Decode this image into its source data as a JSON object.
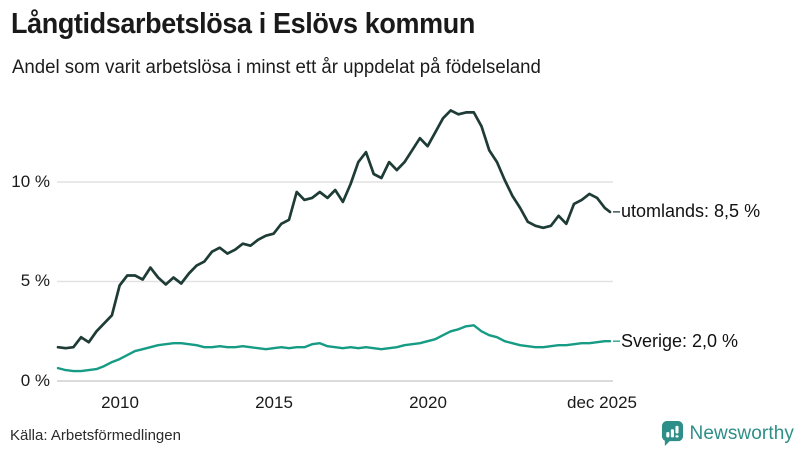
{
  "header": {
    "title": "Långtidsarbetslösa i Eslövs kommun",
    "subtitle": "Andel som varit arbetslösa i minst ett år uppdelat på födelseland"
  },
  "footer": {
    "source": "Källa: Arbetsförmedlingen",
    "brand": "Newsworthy"
  },
  "colors": {
    "utomlands_line": "#1e3b36",
    "sverige_line": "#169b84",
    "gridline": "#e2e2e2",
    "zero_line": "#cfcfcf",
    "brand_teal": "#2e8f88",
    "text": "#1a1a1a"
  },
  "chart_data": {
    "type": "line",
    "title": "Långtidsarbetslösa i Eslövs kommun",
    "subtitle": "Andel som varit arbetslösa i minst ett år uppdelat på födelseland",
    "xlabel": "",
    "ylabel": "",
    "grid": "horizontal",
    "legend_position": "end-of-line-labels",
    "xlim": [
      2008.0,
      2025.92
    ],
    "ylim": [
      0,
      13.9
    ],
    "y_ticks": [
      {
        "label": "0 %",
        "value": 0
      },
      {
        "label": "5 %",
        "value": 5
      },
      {
        "label": "10 %",
        "value": 10
      }
    ],
    "x_ticks": [
      {
        "label": "2010",
        "value": 2010
      },
      {
        "label": "2015",
        "value": 2015
      },
      {
        "label": "2020",
        "value": 2020
      },
      {
        "label": "dec 2025",
        "value": 2025.92
      }
    ],
    "x": [
      2008.0,
      2008.25,
      2008.5,
      2008.75,
      2009.0,
      2009.25,
      2009.5,
      2009.75,
      2010.0,
      2010.25,
      2010.5,
      2010.75,
      2011.0,
      2011.25,
      2011.5,
      2011.75,
      2012.0,
      2012.25,
      2012.5,
      2012.75,
      2013.0,
      2013.25,
      2013.5,
      2013.75,
      2014.0,
      2014.25,
      2014.5,
      2014.75,
      2015.0,
      2015.25,
      2015.5,
      2015.75,
      2016.0,
      2016.25,
      2016.5,
      2016.75,
      2017.0,
      2017.25,
      2017.5,
      2017.75,
      2018.0,
      2018.25,
      2018.5,
      2018.75,
      2019.0,
      2019.25,
      2019.5,
      2019.75,
      2020.0,
      2020.25,
      2020.5,
      2020.75,
      2021.0,
      2021.25,
      2021.5,
      2021.75,
      2022.0,
      2022.25,
      2022.5,
      2022.75,
      2023.0,
      2023.25,
      2023.5,
      2023.75,
      2024.0,
      2024.25,
      2024.5,
      2024.75,
      2025.0,
      2025.25,
      2025.5,
      2025.75,
      2025.92
    ],
    "series": [
      {
        "name": "utomlands",
        "end_label": "utomlands: 8,5 %",
        "current_value": "8,5 %",
        "color": "#1e3b36",
        "values": [
          1.7,
          1.65,
          1.7,
          2.2,
          1.95,
          2.5,
          2.9,
          3.3,
          4.8,
          5.3,
          5.3,
          5.1,
          5.7,
          5.2,
          4.85,
          5.2,
          4.9,
          5.4,
          5.8,
          6.0,
          6.5,
          6.7,
          6.4,
          6.6,
          6.9,
          6.8,
          7.1,
          7.3,
          7.4,
          7.9,
          8.1,
          9.5,
          9.1,
          9.2,
          9.5,
          9.2,
          9.6,
          9.0,
          9.9,
          11.0,
          11.5,
          10.4,
          10.2,
          11.0,
          10.6,
          11.0,
          11.6,
          12.2,
          11.8,
          12.5,
          13.2,
          13.6,
          13.4,
          13.5,
          13.5,
          12.8,
          11.6,
          11.0,
          10.1,
          9.3,
          8.7,
          8.0,
          7.8,
          7.7,
          7.8,
          8.3,
          7.9,
          8.9,
          9.1,
          9.4,
          9.2,
          8.7,
          8.5
        ]
      },
      {
        "name": "Sverige",
        "end_label": "Sverige: 2,0 %",
        "current_value": "2,0 %",
        "color": "#169b84",
        "values": [
          0.65,
          0.55,
          0.5,
          0.5,
          0.55,
          0.6,
          0.75,
          0.95,
          1.1,
          1.3,
          1.5,
          1.6,
          1.7,
          1.8,
          1.85,
          1.9,
          1.9,
          1.85,
          1.8,
          1.7,
          1.7,
          1.75,
          1.7,
          1.7,
          1.75,
          1.7,
          1.65,
          1.6,
          1.65,
          1.7,
          1.65,
          1.7,
          1.7,
          1.85,
          1.9,
          1.75,
          1.7,
          1.65,
          1.7,
          1.65,
          1.7,
          1.65,
          1.6,
          1.65,
          1.7,
          1.8,
          1.85,
          1.9,
          2.0,
          2.1,
          2.3,
          2.5,
          2.6,
          2.75,
          2.8,
          2.5,
          2.3,
          2.2,
          2.0,
          1.9,
          1.8,
          1.75,
          1.7,
          1.7,
          1.75,
          1.8,
          1.8,
          1.85,
          1.9,
          1.9,
          1.95,
          2.0,
          2.0
        ]
      }
    ]
  }
}
